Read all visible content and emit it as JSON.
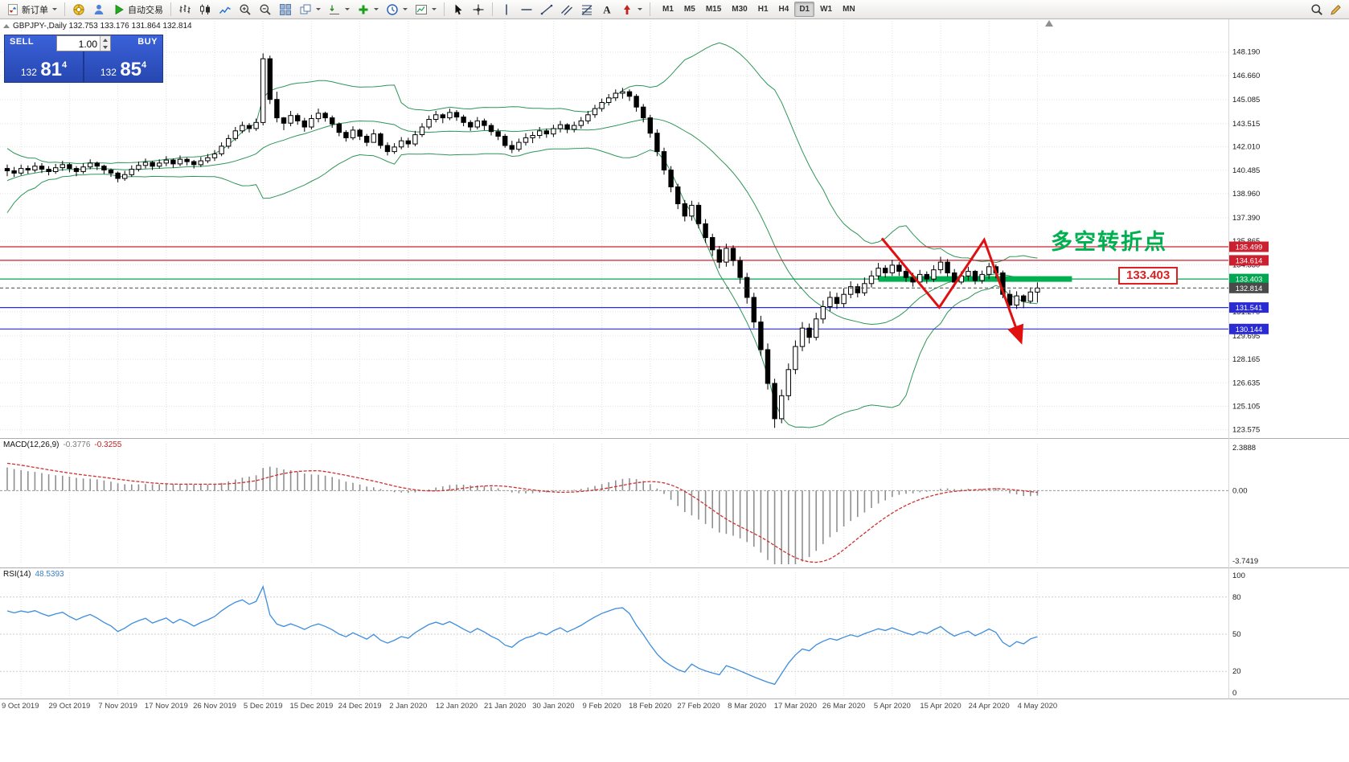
{
  "toolbar": {
    "buttons": [
      {
        "name": "new-order",
        "icon": "new-order",
        "label": "新订单",
        "dropdown": true
      },
      {
        "type": "sep"
      },
      {
        "name": "layout",
        "icon": "compass"
      },
      {
        "name": "community",
        "icon": "person"
      },
      {
        "name": "autotrading",
        "icon": "play",
        "label": "自动交易"
      },
      {
        "type": "sep"
      },
      {
        "name": "bar-chart",
        "icon": "bars"
      },
      {
        "name": "candlestick-chart",
        "icon": "candles"
      },
      {
        "name": "line-chart",
        "icon": "linechart"
      },
      {
        "name": "zoom-in",
        "icon": "zoom-in"
      },
      {
        "name": "zoom-out",
        "icon": "zoom-out"
      },
      {
        "name": "tile-windows",
        "icon": "tiles"
      },
      {
        "name": "arrange-windows",
        "icon": "cascade",
        "dropdown": true
      },
      {
        "name": "chart-shift",
        "icon": "shift",
        "dropdown": true
      },
      {
        "name": "indicators",
        "icon": "plus",
        "dropdown": true
      },
      {
        "name": "periods",
        "icon": "clock",
        "dropdown": true
      },
      {
        "name": "templates",
        "icon": "template",
        "dropdown": true
      },
      {
        "type": "sep"
      },
      {
        "name": "cursor",
        "icon": "cursor"
      },
      {
        "name": "crosshair",
        "icon": "crosshair"
      },
      {
        "type": "sep"
      },
      {
        "name": "vertical-line",
        "icon": "vline"
      },
      {
        "name": "horizontal-line",
        "icon": "hline"
      },
      {
        "name": "trendline",
        "icon": "tline"
      },
      {
        "name": "equidistant-channel",
        "icon": "channel"
      },
      {
        "name": "fibonacci",
        "icon": "fibo"
      },
      {
        "name": "text",
        "icon": "text-a"
      },
      {
        "name": "arrows",
        "icon": "arrow-shape",
        "dropdown": true
      },
      {
        "type": "sep"
      }
    ],
    "timeframes": [
      "M1",
      "M5",
      "M15",
      "M30",
      "H1",
      "H4",
      "D1",
      "W1",
      "MN"
    ],
    "active_timeframe": "D1",
    "right_buttons": [
      {
        "name": "search",
        "icon": "search"
      },
      {
        "name": "quick-edit",
        "icon": "pencil"
      }
    ]
  },
  "symbol_line": "GBPJPY-,Daily  132.753 133.176 131.864 132.814",
  "one_click": {
    "sell_label": "SELL",
    "buy_label": "BUY",
    "volume": "1.00",
    "sell_price_main": "132",
    "sell_price_big": "81",
    "sell_price_sup": "4",
    "buy_price_main": "132",
    "buy_price_big": "85",
    "buy_price_sup": "4"
  },
  "annotation": "多空转折点",
  "price_label_box": "133.403",
  "price_axis_labels": [
    "148.190",
    "146.660",
    "145.085",
    "143.515",
    "142.010",
    "140.485",
    "138.960",
    "137.390",
    "135.865",
    "134.330",
    "132.800",
    "131.270",
    "129.695",
    "128.165",
    "126.635",
    "125.105",
    "123.575"
  ],
  "date_axis_labels": [
    "9 Oct 2019",
    "29 Oct 2019",
    "7 Nov 2019",
    "17 Nov 2019",
    "26 Nov 2019",
    "5 Dec 2019",
    "15 Dec 2019",
    "24 Dec 2019",
    "2 Jan 2020",
    "12 Jan 2020",
    "21 Jan 2020",
    "30 Jan 2020",
    "9 Feb 2020",
    "18 Feb 2020",
    "27 Feb 2020",
    "8 Mar 2020",
    "17 Mar 2020",
    "26 Mar 2020",
    "5 Apr 2020",
    "15 Apr 2020",
    "24 Apr 2020",
    "4 May 2020"
  ],
  "levels": [
    {
      "price": 135.499,
      "color": "#CC2030"
    },
    {
      "price": 134.614,
      "color": "#CC2030"
    },
    {
      "price": 133.403,
      "color": "#00A651"
    },
    {
      "price": 131.541,
      "color": "#2B2BD4"
    },
    {
      "price": 130.144,
      "color": "#2B2BD4"
    }
  ],
  "price_tags": [
    {
      "text": "135.499",
      "bg": "#CC2030"
    },
    {
      "text": "134.614",
      "bg": "#CC2030"
    },
    {
      "text": "133.403",
      "bg": "#00A651"
    },
    {
      "text": "131.541",
      "bg": "#2B2BD4"
    },
    {
      "text": "130.144",
      "bg": "#2B2BD4"
    },
    {
      "text": "132.814",
      "bg": "#4A4A4A"
    }
  ],
  "current_price": {
    "price": 132.814
  },
  "highlight_band": {
    "price": 133.403,
    "from_index": 126,
    "to_index": 154,
    "color": "#00B050",
    "thickness": 7
  },
  "zigzag": {
    "color": "#E01010",
    "points": [
      [
        126.5,
        136.05
      ],
      [
        134.8,
        131.55
      ],
      [
        141.3,
        135.95
      ],
      [
        146.6,
        129.35
      ]
    ]
  },
  "chart_data": {
    "type": "candlestick",
    "symbol": "GBPJPY",
    "timeframe": "Daily",
    "y_range": [
      123.3,
      149.9
    ],
    "bollinger": {
      "period": 20,
      "deviation": 2
    },
    "warmup_closes": [
      134.2,
      134.8,
      135.5,
      135.1,
      136.0,
      136.8,
      137.4,
      136.9,
      137.8,
      138.5,
      139.2,
      138.8,
      139.5,
      140.1,
      139.7,
      140.3,
      140.0,
      140.6,
      140.2,
      140.8,
      140.5,
      140.9,
      140.4,
      140.7,
      140.3,
      140.6
    ],
    "candles_hlc": [
      [
        140.85,
        140.1,
        140.45
      ],
      [
        140.7,
        140.05,
        140.3
      ],
      [
        140.85,
        140.15,
        140.6
      ],
      [
        140.8,
        140.25,
        140.5
      ],
      [
        141.0,
        140.35,
        140.75
      ],
      [
        140.95,
        140.3,
        140.55
      ],
      [
        140.75,
        140.15,
        140.4
      ],
      [
        140.9,
        140.25,
        140.65
      ],
      [
        141.1,
        140.45,
        140.85
      ],
      [
        140.95,
        140.35,
        140.6
      ],
      [
        140.75,
        140.1,
        140.4
      ],
      [
        140.95,
        140.25,
        140.7
      ],
      [
        141.2,
        140.55,
        140.95
      ],
      [
        141.05,
        140.5,
        140.75
      ],
      [
        140.85,
        140.25,
        140.5
      ],
      [
        140.6,
        140.05,
        140.3
      ],
      [
        140.4,
        139.7,
        139.95
      ],
      [
        140.45,
        139.8,
        140.2
      ],
      [
        140.8,
        140.05,
        140.55
      ],
      [
        141.05,
        140.4,
        140.8
      ],
      [
        141.25,
        140.6,
        141.0
      ],
      [
        141.1,
        140.5,
        140.75
      ],
      [
        141.2,
        140.6,
        140.95
      ],
      [
        141.4,
        140.75,
        141.15
      ],
      [
        141.25,
        140.65,
        140.9
      ],
      [
        141.45,
        140.75,
        141.2
      ],
      [
        141.3,
        140.8,
        141.05
      ],
      [
        141.15,
        140.6,
        140.85
      ],
      [
        141.35,
        140.7,
        141.1
      ],
      [
        141.55,
        140.95,
        141.3
      ],
      [
        141.8,
        141.1,
        141.55
      ],
      [
        142.3,
        141.4,
        142.05
      ],
      [
        142.8,
        141.9,
        142.55
      ],
      [
        143.3,
        142.4,
        143.05
      ],
      [
        143.65,
        142.9,
        143.4
      ],
      [
        143.55,
        142.95,
        143.2
      ],
      [
        143.85,
        143.05,
        143.6
      ],
      [
        148.1,
        143.4,
        147.75
      ],
      [
        147.95,
        144.8,
        145.1
      ],
      [
        145.6,
        143.6,
        143.9
      ],
      [
        143.95,
        143.1,
        143.55
      ],
      [
        144.35,
        143.35,
        144.05
      ],
      [
        144.2,
        143.45,
        143.7
      ],
      [
        143.9,
        143.0,
        143.3
      ],
      [
        144.1,
        143.15,
        143.85
      ],
      [
        144.5,
        143.6,
        144.2
      ],
      [
        144.3,
        143.65,
        143.9
      ],
      [
        144.05,
        143.25,
        143.5
      ],
      [
        143.6,
        142.7,
        142.95
      ],
      [
        143.1,
        142.35,
        142.6
      ],
      [
        143.35,
        142.45,
        143.1
      ],
      [
        143.2,
        142.45,
        142.7
      ],
      [
        142.85,
        142.05,
        142.3
      ],
      [
        143.15,
        142.4,
        142.85
      ],
      [
        142.95,
        141.9,
        142.1
      ],
      [
        142.3,
        141.45,
        141.7
      ],
      [
        142.25,
        141.55,
        142.0
      ],
      [
        142.65,
        141.85,
        142.4
      ],
      [
        142.6,
        141.95,
        142.2
      ],
      [
        143.05,
        142.05,
        142.8
      ],
      [
        143.55,
        142.65,
        143.3
      ],
      [
        144.05,
        143.15,
        143.8
      ],
      [
        144.35,
        143.6,
        144.1
      ],
      [
        144.2,
        143.55,
        143.9
      ],
      [
        144.5,
        143.75,
        144.25
      ],
      [
        144.4,
        143.7,
        143.95
      ],
      [
        144.1,
        143.35,
        143.6
      ],
      [
        143.75,
        143.05,
        143.3
      ],
      [
        143.95,
        143.15,
        143.7
      ],
      [
        143.85,
        143.1,
        143.4
      ],
      [
        143.55,
        142.75,
        143.0
      ],
      [
        143.2,
        142.45,
        142.7
      ],
      [
        142.85,
        141.95,
        142.1
      ],
      [
        142.4,
        141.6,
        141.85
      ],
      [
        142.55,
        141.7,
        142.3
      ],
      [
        142.9,
        142.1,
        142.6
      ],
      [
        143.0,
        142.25,
        142.75
      ],
      [
        143.3,
        142.55,
        143.05
      ],
      [
        143.2,
        142.6,
        142.85
      ],
      [
        143.45,
        142.65,
        143.2
      ],
      [
        143.7,
        142.95,
        143.45
      ],
      [
        143.55,
        142.9,
        143.15
      ],
      [
        143.65,
        142.95,
        143.4
      ],
      [
        143.95,
        143.2,
        143.7
      ],
      [
        144.35,
        143.5,
        144.1
      ],
      [
        144.75,
        143.9,
        144.5
      ],
      [
        145.15,
        144.3,
        144.9
      ],
      [
        145.45,
        144.7,
        145.2
      ],
      [
        145.75,
        145.0,
        145.5
      ],
      [
        145.85,
        145.15,
        145.6
      ],
      [
        145.75,
        145.0,
        145.3
      ],
      [
        145.45,
        144.3,
        144.6
      ],
      [
        144.8,
        143.6,
        143.9
      ],
      [
        144.1,
        142.6,
        142.9
      ],
      [
        143.15,
        141.4,
        141.7
      ],
      [
        141.95,
        140.2,
        140.5
      ],
      [
        140.75,
        139.05,
        139.4
      ],
      [
        139.6,
        137.95,
        138.3
      ],
      [
        138.55,
        137.15,
        137.5
      ],
      [
        138.5,
        137.2,
        138.2
      ],
      [
        138.4,
        136.7,
        137.0
      ],
      [
        137.3,
        135.75,
        136.1
      ],
      [
        136.35,
        134.9,
        135.3
      ],
      [
        135.55,
        134.1,
        134.5
      ],
      [
        135.7,
        134.2,
        135.4
      ],
      [
        135.6,
        134.25,
        134.6
      ],
      [
        134.85,
        133.1,
        133.5
      ],
      [
        133.8,
        131.8,
        132.2
      ],
      [
        132.5,
        130.2,
        130.6
      ],
      [
        131.0,
        128.4,
        128.8
      ],
      [
        129.2,
        126.2,
        126.6
      ],
      [
        126.9,
        123.7,
        124.3
      ],
      [
        126.2,
        124.0,
        125.8
      ],
      [
        127.9,
        125.5,
        127.5
      ],
      [
        129.4,
        127.2,
        129.0
      ],
      [
        130.6,
        128.7,
        130.2
      ],
      [
        130.5,
        129.2,
        129.6
      ],
      [
        131.2,
        129.4,
        130.8
      ],
      [
        132.0,
        130.5,
        131.6
      ],
      [
        132.6,
        131.3,
        132.2
      ],
      [
        132.5,
        131.45,
        131.8
      ],
      [
        132.8,
        131.55,
        132.4
      ],
      [
        133.25,
        132.15,
        132.9
      ],
      [
        133.1,
        132.2,
        132.5
      ],
      [
        133.5,
        132.3,
        133.1
      ],
      [
        133.95,
        132.85,
        133.6
      ],
      [
        134.45,
        133.35,
        134.1
      ],
      [
        134.3,
        133.5,
        133.8
      ],
      [
        134.65,
        133.6,
        134.3
      ],
      [
        134.5,
        133.6,
        133.9
      ],
      [
        134.1,
        133.2,
        133.5
      ],
      [
        133.8,
        132.9,
        133.2
      ],
      [
        134.0,
        133.0,
        133.7
      ],
      [
        133.9,
        133.1,
        133.4
      ],
      [
        134.3,
        133.2,
        134.0
      ],
      [
        134.85,
        133.75,
        134.5
      ],
      [
        134.7,
        133.55,
        133.8
      ],
      [
        134.05,
        132.9,
        133.2
      ],
      [
        133.9,
        133.05,
        133.6
      ],
      [
        134.2,
        133.3,
        133.9
      ],
      [
        134.0,
        133.05,
        133.3
      ],
      [
        133.95,
        133.1,
        133.7
      ],
      [
        134.45,
        133.4,
        134.2
      ],
      [
        134.35,
        133.45,
        133.8
      ],
      [
        133.95,
        132.15,
        132.4
      ],
      [
        132.7,
        131.35,
        131.7
      ],
      [
        132.6,
        131.45,
        132.3
      ],
      [
        132.4,
        131.5,
        131.95
      ],
      [
        132.85,
        131.8,
        132.55
      ],
      [
        133.18,
        131.86,
        132.81
      ]
    ]
  },
  "macd": {
    "name": "MACD(12,26,9)",
    "value_main": "-0.3776",
    "value_signal": "-0.3255",
    "axis_max": "2.3888",
    "axis_zero": "0.00",
    "axis_min": "-3.7419",
    "params": {
      "fast": 12,
      "slow": 26,
      "signal": 9
    }
  },
  "rsi": {
    "name": "RSI(14)",
    "value": "48.5393",
    "period": 14,
    "axis_labels": [
      "100",
      "80",
      "50",
      "20",
      "0"
    ],
    "levels": [
      80,
      50,
      20
    ]
  }
}
